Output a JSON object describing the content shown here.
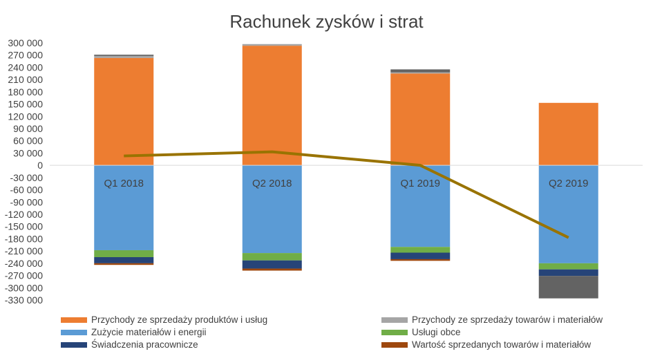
{
  "chart_data": {
    "type": "bar",
    "stacked": true,
    "title": "Rachunek zysków i strat",
    "categories": [
      "Q1 2018",
      "Q2 2018",
      "Q1 2019",
      "Q2 2019"
    ],
    "ylim": [
      -330000,
      300000
    ],
    "y_ticks": [
      300000,
      270000,
      240000,
      210000,
      180000,
      150000,
      120000,
      90000,
      60000,
      30000,
      0,
      -30000,
      -60000,
      -90000,
      -120000,
      -150000,
      -180000,
      -210000,
      -240000,
      -270000,
      -300000,
      -330000
    ],
    "y_tick_labels": [
      "300 000",
      "270 000",
      "240 000",
      "210 000",
      "180 000",
      "150 000",
      "120 000",
      "90 000",
      "60 000",
      "30 000",
      "0",
      "-30 000",
      "-60 000",
      "-90 000",
      "-120 000",
      "-150 000",
      "-180 000",
      "-210 000",
      "-240 000",
      "-270 000",
      "-300 000",
      "-330 000"
    ],
    "grid": false,
    "legend_position": "bottom",
    "series": [
      {
        "name": "Przychody ze sprzedaży produktów i usług",
        "color": "#ED7D31",
        "values": [
          263000,
          293000,
          225000,
          153000
        ]
      },
      {
        "name": "Przychody ze sprzedaży towarów i materiałów",
        "color": "#A5A5A5",
        "values": [
          5000,
          4000,
          3000,
          0
        ]
      },
      {
        "name": "Zużycie materiałów i energii",
        "color": "#5B9BD5",
        "values": [
          -208000,
          -215000,
          -200000,
          -240000
        ]
      },
      {
        "name": "Usługi obce",
        "color": "#70AD47",
        "values": [
          -17000,
          -18000,
          -14000,
          -15000
        ]
      },
      {
        "name": "Świadczenia pracownicze",
        "color": "#264478",
        "values": [
          -15000,
          -20000,
          -16000,
          -16000
        ]
      },
      {
        "name": "Wartość sprzedanych towarów i materiałów",
        "color": "#9E480E",
        "values": [
          -4000,
          -5000,
          -4000,
          0
        ]
      },
      {
        "color": "#636363",
        "values": [
          3000,
          0,
          7000,
          0
        ]
      },
      {
        "color": "#636363",
        "values": [
          0,
          0,
          0,
          -55000
        ]
      }
    ],
    "line": {
      "color": "#997300",
      "values": [
        23000,
        33000,
        0,
        -177000
      ]
    }
  }
}
